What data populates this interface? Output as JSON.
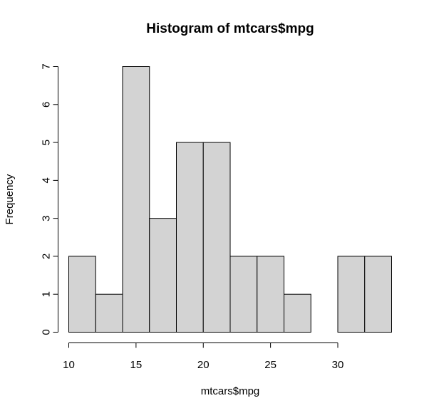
{
  "chart_data": {
    "type": "bar",
    "title": "Histogram of mtcars$mpg",
    "xlabel": "mtcars$mpg",
    "ylabel": "Frequency",
    "bin_edges": [
      10,
      12,
      14,
      16,
      18,
      20,
      22,
      24,
      26,
      28,
      30,
      32,
      34
    ],
    "values": [
      2,
      1,
      7,
      3,
      5,
      5,
      2,
      2,
      1,
      0,
      2,
      2
    ],
    "xlim": [
      10,
      34
    ],
    "ylim": [
      0,
      7
    ],
    "x_ticks": [
      10,
      15,
      20,
      25,
      30
    ],
    "y_ticks": [
      0,
      1,
      2,
      3,
      4,
      5,
      6,
      7
    ],
    "grid": false,
    "bar_fill": "#d3d3d3",
    "bar_stroke": "#000000"
  }
}
